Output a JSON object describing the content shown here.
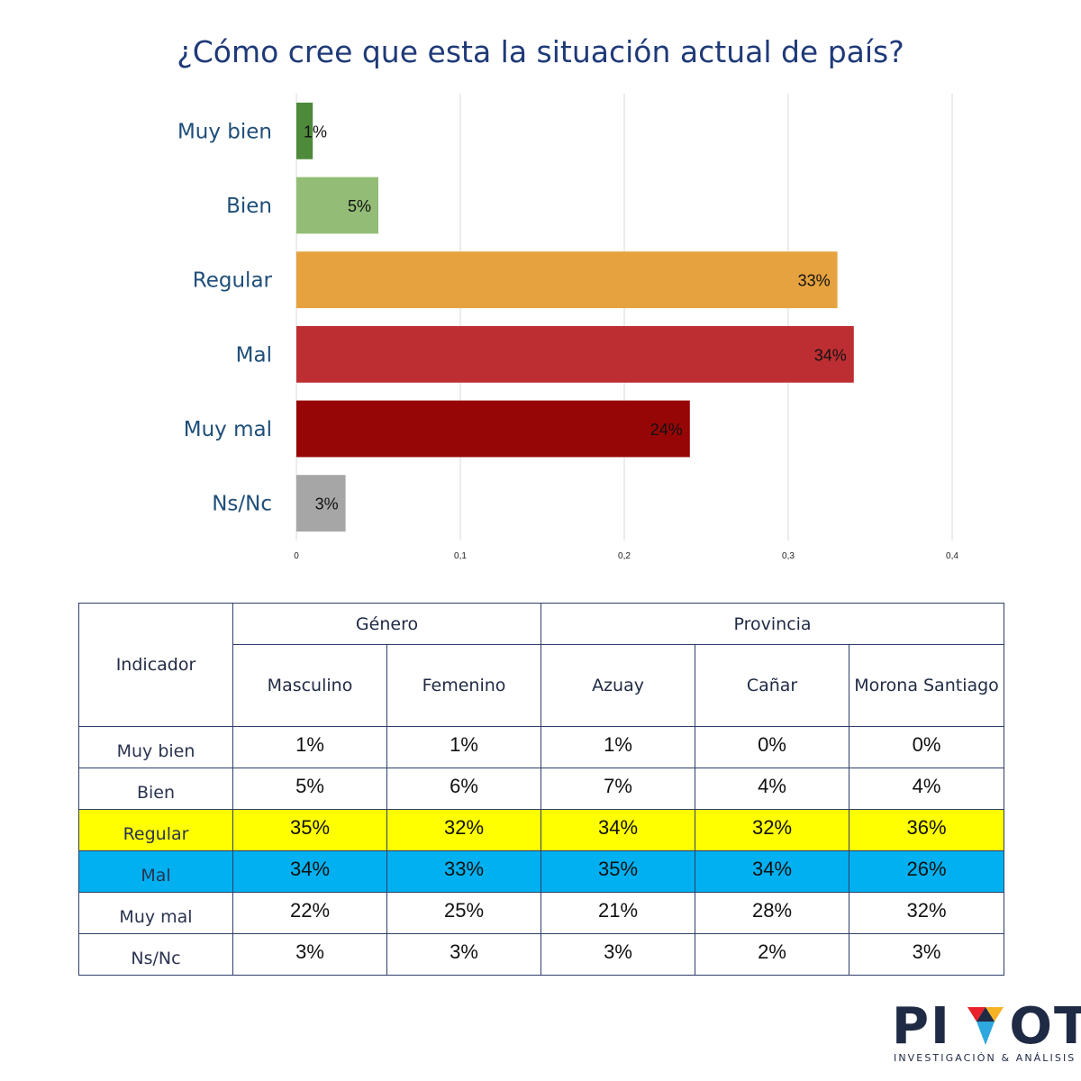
{
  "title": "¿Cómo cree que esta la situación actual de país?",
  "chart_data": {
    "type": "bar",
    "orientation": "horizontal",
    "title": "¿Cómo cree que esta la situación actual de país?",
    "categories": [
      "Muy bien",
      "Bien",
      "Regular",
      "Mal",
      "Muy mal",
      "Ns/Nc"
    ],
    "values": [
      0.01,
      0.05,
      0.33,
      0.34,
      0.24,
      0.03
    ],
    "data_labels": [
      "1%",
      "5%",
      "33%",
      "34%",
      "24%",
      "3%"
    ],
    "colors": [
      "#4e8a3a",
      "#93bd77",
      "#e5a23e",
      "#bd2e32",
      "#970606",
      "#a6a6a6"
    ],
    "xlim": [
      0,
      0.4
    ],
    "xticks": [
      "0",
      "0,1",
      "0,2",
      "0,3",
      "0,4"
    ],
    "grid": true,
    "legend": "none"
  },
  "table": {
    "indicator_header": "Indicador",
    "group_headers": [
      "Género",
      "Provincia"
    ],
    "columns": [
      "Masculino",
      "Femenino",
      "Azuay",
      "Cañar",
      "Morona Santiago"
    ],
    "rows": [
      {
        "label": "Muy bien",
        "values": [
          "1%",
          "1%",
          "1%",
          "0%",
          "0%"
        ]
      },
      {
        "label": "Bien",
        "values": [
          "5%",
          "6%",
          "7%",
          "4%",
          "4%"
        ]
      },
      {
        "label": "Regular",
        "values": [
          "35%",
          "32%",
          "34%",
          "32%",
          "36%"
        ]
      },
      {
        "label": "Mal",
        "values": [
          "34%",
          "33%",
          "35%",
          "34%",
          "26%"
        ]
      },
      {
        "label": "Muy mal",
        "values": [
          "22%",
          "25%",
          "21%",
          "28%",
          "32%"
        ]
      },
      {
        "label": "Ns/Nc",
        "values": [
          "3%",
          "3%",
          "3%",
          "2%",
          "3%"
        ]
      }
    ],
    "highlight_colors": {
      "Regular": "#ffff00",
      "Mal": "#00b0f0"
    }
  },
  "logo": {
    "name": "PIVOT",
    "tagline": "INVESTIGACIÓN & ANÁLISIS",
    "colors": [
      "#e8212b",
      "#f5b324",
      "#2fa8df",
      "#1f2a44"
    ]
  }
}
